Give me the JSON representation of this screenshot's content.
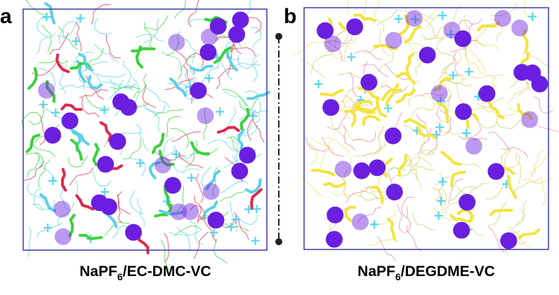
{
  "panels": [
    {
      "label": "a",
      "caption": {
        "prefix": "NaPF",
        "subscript": "6",
        "suffix": "/EC-DMC-VC"
      }
    },
    {
      "label": "b",
      "caption": {
        "prefix": "NaPF",
        "subscript": "6",
        "suffix": "/DEGDME-VC"
      }
    }
  ]
}
